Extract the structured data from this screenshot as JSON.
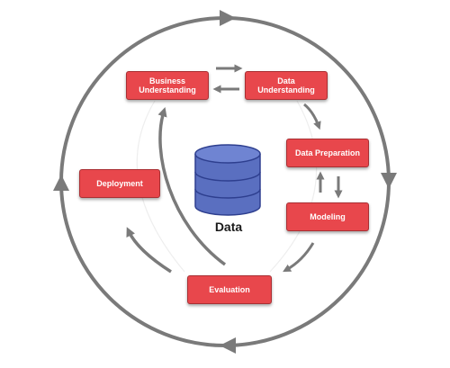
{
  "diagram": {
    "center_label": "Data",
    "stages": {
      "business_understanding": "Business\nUnderstanding",
      "data_understanding": "Data\nUnderstanding",
      "data_preparation": "Data Preparation",
      "modeling": "Modeling",
      "evaluation": "Evaluation",
      "deployment": "Deployment"
    },
    "colors": {
      "box_fill": "#e8474c",
      "box_border": "#a92f33",
      "arrow_gray": "#7a7a7a",
      "database_blue": "#5a6fc0",
      "database_outline": "#2e3f8f"
    }
  }
}
